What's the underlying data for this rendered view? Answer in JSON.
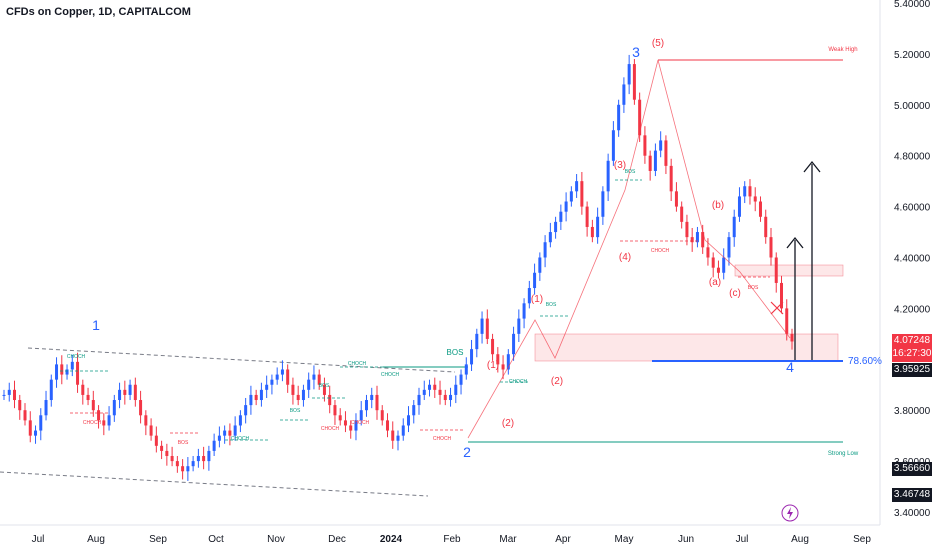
{
  "title": "CFDs on Copper, 1D, CAPITALCOM",
  "chart_data": {
    "type": "candlestick",
    "title": "CFDs on Copper, 1D, CAPITALCOM",
    "ylim": [
      3.4,
      5.4
    ],
    "y_ticks": [
      "5.40000",
      "5.20000",
      "5.00000",
      "4.80000",
      "4.60000",
      "4.40000",
      "4.20000",
      "3.80000",
      "3.60000",
      "3.40000"
    ],
    "y_tick_values": [
      5.4,
      5.2,
      5.0,
      4.8,
      4.6,
      4.4,
      4.2,
      3.8,
      3.6,
      3.4
    ],
    "months": [
      "Jul",
      "Aug",
      "Sep",
      "Oct",
      "Nov",
      "Dec",
      "2024",
      "Feb",
      "Mar",
      "Apr",
      "May",
      "Jun",
      "Jul",
      "Aug",
      "Sep"
    ],
    "month_index": [
      0,
      1,
      2,
      3,
      4,
      5,
      6,
      7,
      8,
      9,
      10,
      11,
      12,
      13,
      14
    ],
    "price_tags": {
      "current": "4.07248",
      "countdown": "16:27:30",
      "level_786": "3.95925",
      "level_a": "3.56660",
      "level_b": "3.46748"
    },
    "fib_label": "78.60%",
    "annotations": {
      "wave_1": "1",
      "wave_2": "2",
      "wave_3": "3",
      "wave_4": "4",
      "sub_5": "(5)",
      "sub_3": "(3)",
      "sub_4": "(4)",
      "sub_1a": "(1)",
      "sub_1b": "(1)",
      "sub_2a": "(2)",
      "sub_2b": "(2)",
      "sub_a": "(a)",
      "sub_b": "(b)",
      "sub_c": "(c)",
      "bos": "BOS",
      "bos_small": "BOS",
      "choch": "CHOCH",
      "weak_high": "Weak High",
      "strong_low": "Strong Low"
    },
    "series": [
      {
        "values": [
          3.86,
          3.88,
          3.84,
          3.8,
          3.76,
          3.7,
          3.72,
          3.78,
          3.84,
          3.92,
          3.98,
          3.94,
          3.96,
          3.99,
          3.9,
          3.86,
          3.84,
          3.8,
          3.76,
          3.74,
          3.78,
          3.84,
          3.88,
          3.86,
          3.9,
          3.84,
          3.78,
          3.74,
          3.7,
          3.66,
          3.64,
          3.62,
          3.6,
          3.58,
          3.56,
          3.58,
          3.6,
          3.62,
          3.6,
          3.64,
          3.68,
          3.7,
          3.72,
          3.7,
          3.74,
          3.78,
          3.82,
          3.86,
          3.84,
          3.88,
          3.9,
          3.92,
          3.94,
          3.96,
          3.9,
          3.86,
          3.84,
          3.88,
          3.92,
          3.94,
          3.9,
          3.86,
          3.82,
          3.78,
          3.76,
          3.74,
          3.72,
          3.76,
          3.8,
          3.84,
          3.86,
          3.8,
          3.76,
          3.72,
          3.68,
          3.7,
          3.74,
          3.78,
          3.82,
          3.86,
          3.88,
          3.9,
          3.88,
          3.86,
          3.84,
          3.86,
          3.9,
          3.94,
          3.98,
          4.04,
          4.1,
          4.16,
          4.08,
          4.02,
          3.98,
          3.96,
          4.02,
          4.1,
          4.16,
          4.22,
          4.28,
          4.34,
          4.4,
          4.46,
          4.5,
          4.54,
          4.58,
          4.62,
          4.66,
          4.7,
          4.6,
          4.52,
          4.48,
          4.56,
          4.66,
          4.78,
          4.9,
          5.0,
          5.08,
          5.16,
          5.02,
          4.88,
          4.8,
          4.74,
          4.82,
          4.86,
          4.76,
          4.66,
          4.6,
          4.54,
          4.48,
          4.46,
          4.5,
          4.44,
          4.4,
          4.36,
          4.34,
          4.4,
          4.48,
          4.56,
          4.64,
          4.68,
          4.64,
          4.62,
          4.56,
          4.48,
          4.4,
          4.3,
          4.2,
          4.1,
          4.07
        ]
      }
    ]
  }
}
